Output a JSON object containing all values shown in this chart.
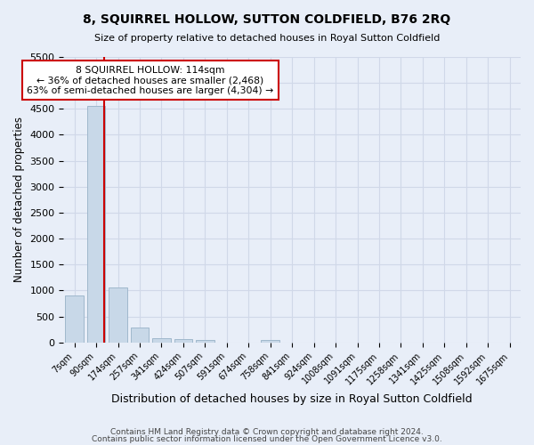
{
  "title": "8, SQUIRREL HOLLOW, SUTTON COLDFIELD, B76 2RQ",
  "subtitle": "Size of property relative to detached houses in Royal Sutton Coldfield",
  "xlabel": "Distribution of detached houses by size in Royal Sutton Coldfield",
  "ylabel": "Number of detached properties",
  "footnote1": "Contains HM Land Registry data © Crown copyright and database right 2024.",
  "footnote2": "Contains public sector information licensed under the Open Government Licence v3.0.",
  "bar_labels": [
    "7sqm",
    "90sqm",
    "174sqm",
    "257sqm",
    "341sqm",
    "424sqm",
    "507sqm",
    "591sqm",
    "674sqm",
    "758sqm",
    "841sqm",
    "924sqm",
    "1008sqm",
    "1091sqm",
    "1175sqm",
    "1258sqm",
    "1341sqm",
    "1425sqm",
    "1508sqm",
    "1592sqm",
    "1675sqm"
  ],
  "bar_values": [
    900,
    4550,
    1060,
    290,
    80,
    55,
    40,
    0,
    0,
    40,
    0,
    0,
    0,
    0,
    0,
    0,
    0,
    0,
    0,
    0,
    0
  ],
  "bar_color": "#c8d8e8",
  "bar_edge_color": "#a0b8cc",
  "ylim": [
    0,
    5500
  ],
  "yticks": [
    0,
    500,
    1000,
    1500,
    2000,
    2500,
    3000,
    3500,
    4000,
    4500,
    5000,
    5500
  ],
  "vline_x": 1.36,
  "vline_color": "#cc0000",
  "annotation_title": "8 SQUIRREL HOLLOW: 114sqm",
  "annotation_line1": "← 36% of detached houses are smaller (2,468)",
  "annotation_line2": "63% of semi-detached houses are larger (4,304) →",
  "annotation_box_color": "#ffffff",
  "annotation_box_edge": "#cc0000",
  "grid_color": "#d0d8e8",
  "bg_color": "#e8eef8"
}
